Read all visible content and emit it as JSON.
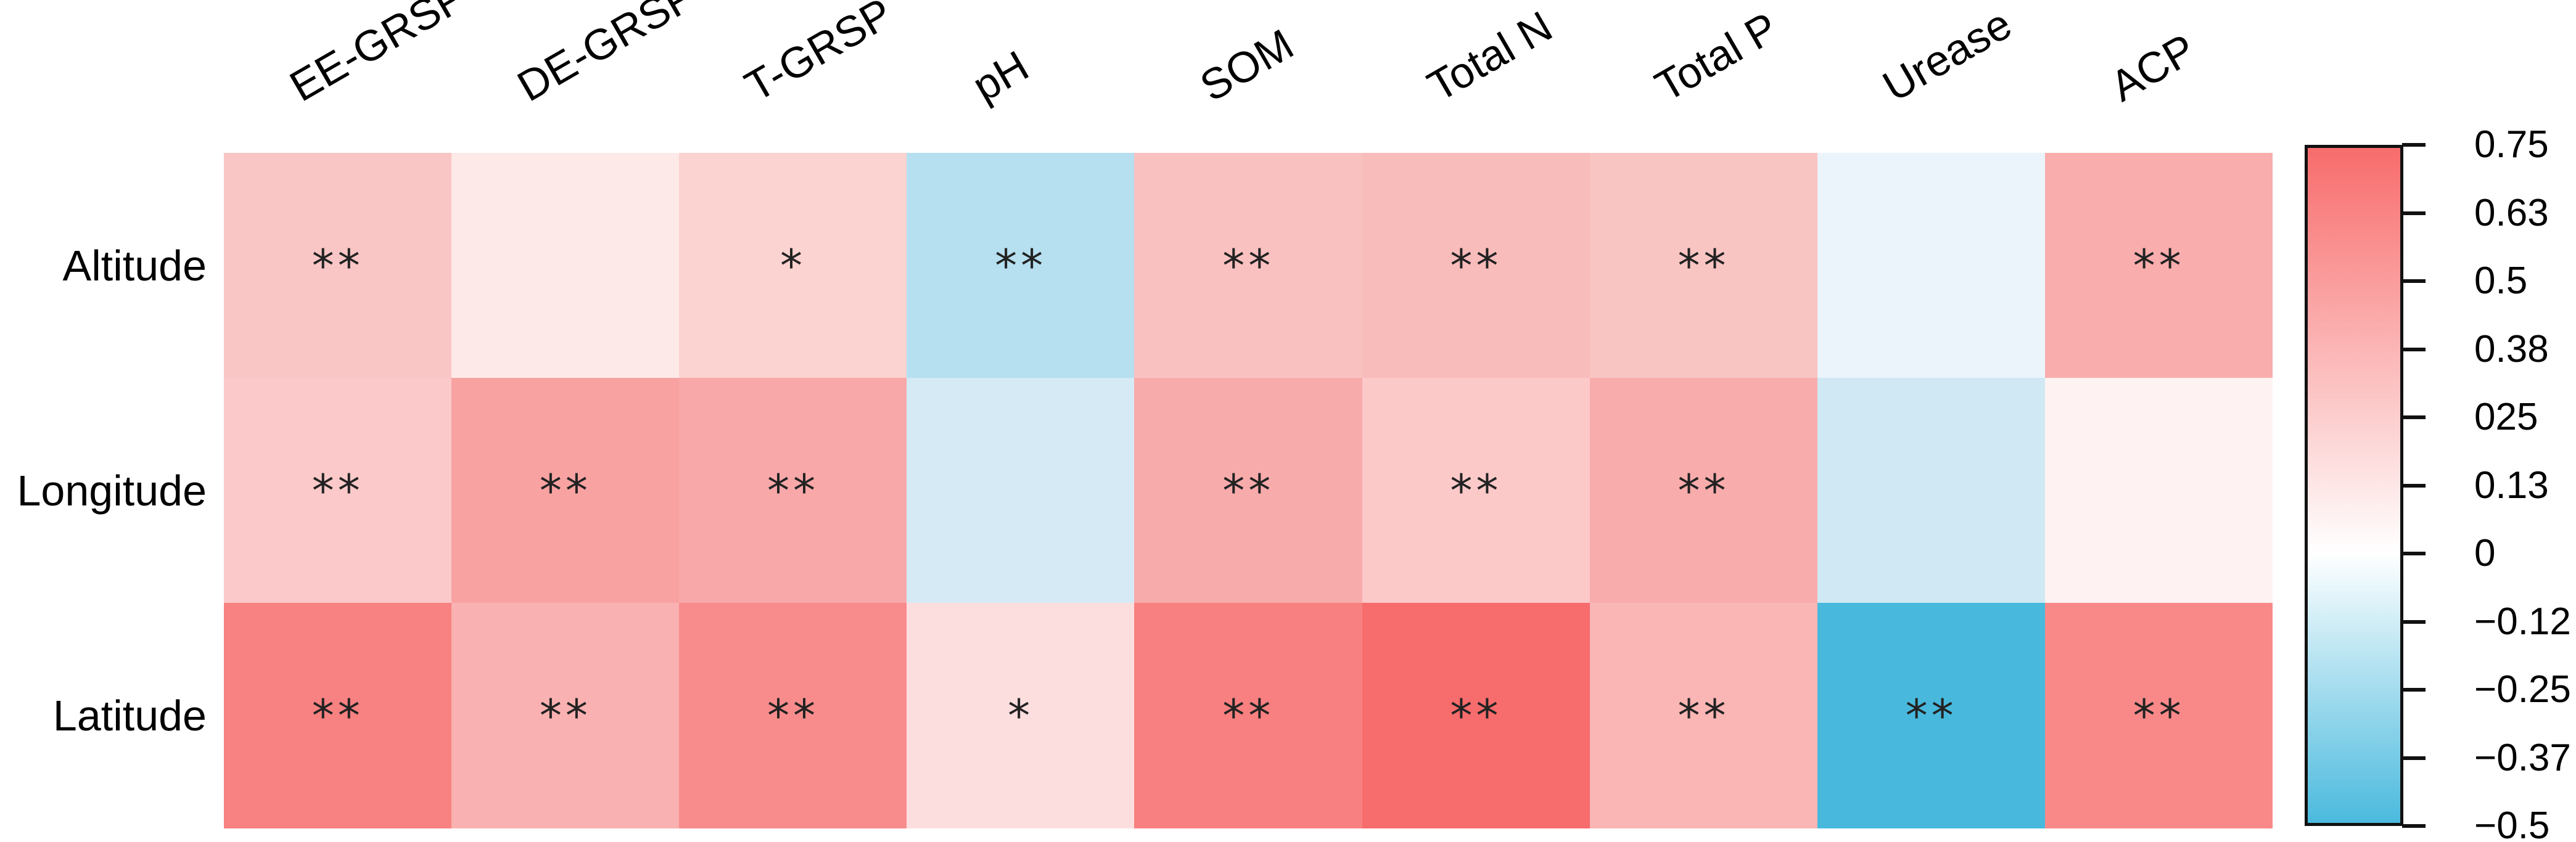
{
  "chart_data": {
    "type": "heatmap",
    "title": "",
    "xlabel": "",
    "ylabel": "",
    "x_categories": [
      "EE-GRSP",
      "DE-GRSP",
      "T-GRSP",
      "pH",
      "SOM",
      "Total N",
      "Total P",
      "Urease",
      "ACP"
    ],
    "y_categories": [
      "Altitude",
      "Longitude",
      "Latitude"
    ],
    "series": [
      {
        "name": "Altitude",
        "values": [
          0.28,
          0.1,
          0.2,
          -0.25,
          0.3,
          0.32,
          0.28,
          -0.05,
          0.38
        ]
      },
      {
        "name": "Longitude",
        "values": [
          0.26,
          0.48,
          0.44,
          -0.14,
          0.42,
          0.27,
          0.42,
          -0.16,
          0.04
        ]
      },
      {
        "name": "Latitude",
        "values": [
          0.62,
          0.38,
          0.56,
          0.15,
          0.62,
          0.72,
          0.36,
          -0.5,
          0.58
        ]
      }
    ],
    "significance": [
      [
        "**",
        "",
        "*",
        "**",
        "**",
        "**",
        "**",
        "",
        "**"
      ],
      [
        "**",
        "**",
        "**",
        "",
        "**",
        "**",
        "**",
        "",
        ""
      ],
      [
        "**",
        "**",
        "**",
        "*",
        "**",
        "**",
        "**",
        "**",
        "**"
      ]
    ],
    "cell_colors": [
      [
        "#f9c6c5",
        "#fdeae8",
        "#fbd3d0",
        "#b6dff0",
        "#f9c2c1",
        "#f8bcbb",
        "#f9c5c3",
        "#eaf4fa",
        "#faadad"
      ],
      [
        "#fbc9c9",
        "#f8a2a2",
        "#f8a8a8",
        "#d5eaf4",
        "#f8abab",
        "#fcc9c9",
        "#f9acac",
        "#d0e8f3",
        "#fef3f2"
      ],
      [
        "#f88181",
        "#fab1b1",
        "#f88c8c",
        "#fcdede",
        "#f88080",
        "#f76c6c",
        "#fab5b5",
        "#48b9dd",
        "#f98989"
      ]
    ],
    "colorbar": {
      "position": "right",
      "min": -0.5,
      "max": 0.75,
      "ticks": [
        "0.75",
        "0.63",
        "0.5",
        "0.38",
        "025",
        "0.13",
        "0",
        "−0.12",
        "−0.25",
        "−0.37",
        "−0.5"
      ],
      "positive_color": "#f86c6c",
      "zero_color": "#ffffff",
      "negative_color": "#4bbade",
      "zero_fraction_from_top": 0.6
    },
    "grid": "off",
    "legend_position": "right"
  }
}
